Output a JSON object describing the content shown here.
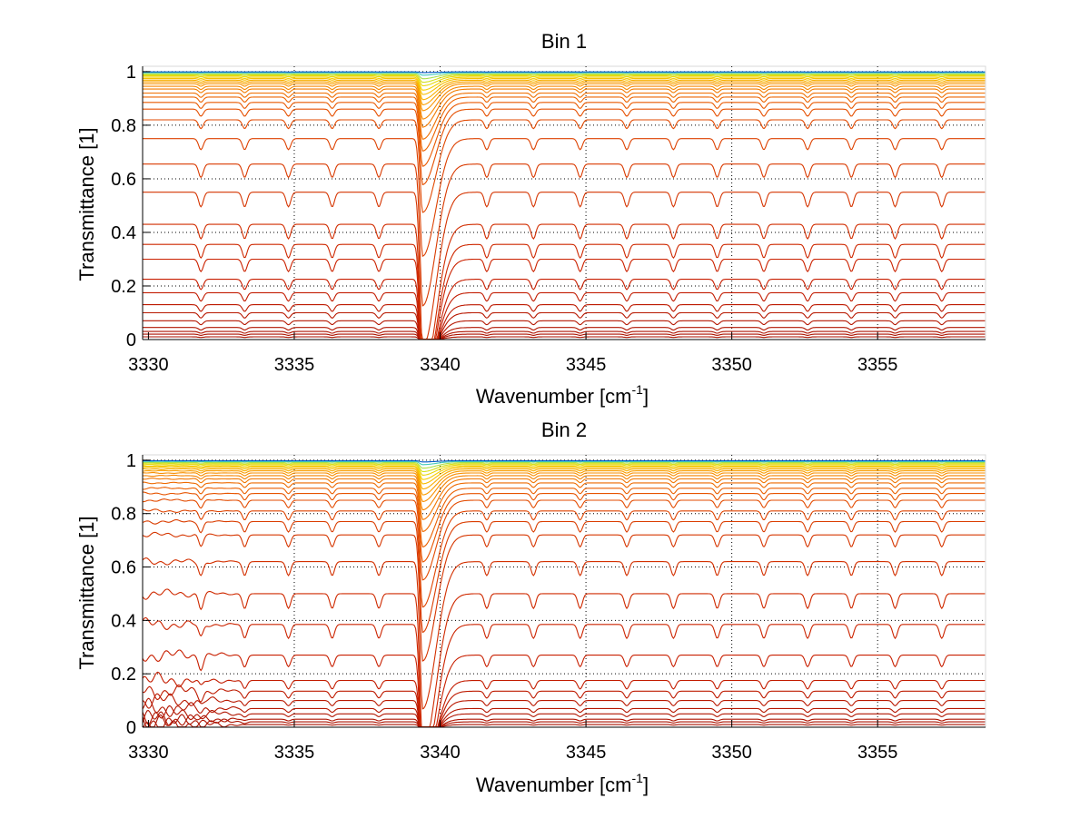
{
  "chart_data": [
    {
      "type": "line",
      "title": "Bin 1",
      "xlabel_main": "Wavenumber [cm",
      "xlabel_sup": "-1",
      "xlabel_end": "]",
      "ylabel": "Transmittance [1]",
      "xlim": [
        3329.8,
        3358.7
      ],
      "ylim": [
        0,
        1.02
      ],
      "x_ticks": [
        3330,
        3335,
        3340,
        3345,
        3350,
        3355
      ],
      "x_tick_labels": [
        "3330",
        "3335",
        "3340",
        "3345",
        "3350",
        "3355"
      ],
      "y_ticks": [
        0,
        0.2,
        0.4,
        0.6,
        0.8,
        1
      ],
      "y_tick_labels": [
        "0",
        "0.2",
        "0.4",
        "0.6",
        "0.8",
        "1"
      ],
      "grid": true,
      "main_absorption_center": 3339.4,
      "weak_line_positions": [
        3331.8,
        3333.3,
        3334.8,
        3336.3,
        3337.9,
        3341.6,
        3343.2,
        3344.8,
        3346.4,
        3348.0,
        3349.5,
        3351.1,
        3352.6,
        3354.1,
        3355.6,
        3357.2
      ],
      "series_baselines": [
        0.01,
        0.02,
        0.03,
        0.045,
        0.07,
        0.1,
        0.13,
        0.175,
        0.225,
        0.3,
        0.355,
        0.43,
        0.55,
        0.655,
        0.75,
        0.82,
        0.86,
        0.885,
        0.905,
        0.92,
        0.935,
        0.945,
        0.955,
        0.962,
        0.968,
        0.974,
        0.979,
        0.984,
        0.988,
        0.992,
        0.996,
        0.999
      ]
    },
    {
      "type": "line",
      "title": "Bin 2",
      "xlabel_main": "Wavenumber [cm",
      "xlabel_sup": "-1",
      "xlabel_end": "]",
      "ylabel": "Transmittance [1]",
      "xlim": [
        3329.8,
        3358.7
      ],
      "ylim": [
        0,
        1.02
      ],
      "x_ticks": [
        3330,
        3335,
        3340,
        3345,
        3350,
        3355
      ],
      "x_tick_labels": [
        "3330",
        "3335",
        "3340",
        "3345",
        "3350",
        "3355"
      ],
      "y_ticks": [
        0,
        0.2,
        0.4,
        0.6,
        0.8,
        1
      ],
      "y_tick_labels": [
        "0",
        "0.2",
        "0.4",
        "0.6",
        "0.8",
        "1"
      ],
      "grid": true,
      "main_absorption_center": 3339.4,
      "weak_line_positions": [
        3331.8,
        3333.3,
        3334.8,
        3336.3,
        3337.9,
        3341.6,
        3343.2,
        3344.8,
        3346.4,
        3348.0,
        3349.5,
        3351.1,
        3352.6,
        3354.1,
        3355.6,
        3357.2
      ],
      "series_baselines": [
        0.01,
        0.02,
        0.03,
        0.05,
        0.07,
        0.1,
        0.135,
        0.175,
        0.27,
        0.385,
        0.5,
        0.62,
        0.72,
        0.77,
        0.81,
        0.85,
        0.875,
        0.895,
        0.915,
        0.93,
        0.942,
        0.952,
        0.96,
        0.967,
        0.973,
        0.978,
        0.983,
        0.987,
        0.991,
        0.995,
        0.998
      ]
    }
  ]
}
